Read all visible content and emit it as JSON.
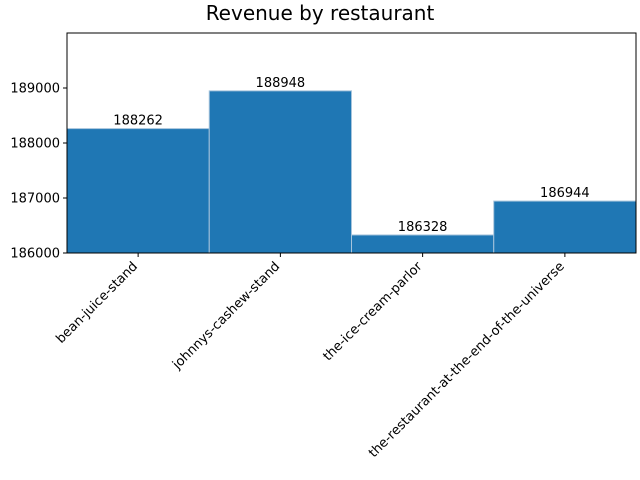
{
  "chart_data": {
    "type": "bar",
    "title": "Revenue by restaurant",
    "xlabel": "",
    "ylabel": "",
    "categories": [
      "bean-juice-stand",
      "johnnys-cashew-stand",
      "the-ice-cream-parlor",
      "the-restaurant-at-the-end-of-the-universe"
    ],
    "values": [
      188262,
      188948,
      186328,
      186944
    ],
    "data_labels": [
      "188262",
      "188948",
      "186328",
      "186944"
    ],
    "ylim": [
      186000,
      190000
    ],
    "yticks": [
      186000,
      187000,
      188000,
      189000
    ],
    "ytick_labels": [
      "186000",
      "187000",
      "188000",
      "189000"
    ],
    "grid": false,
    "bar_color": "#1f77b4",
    "bar_edge_color": "#a6c4dc"
  }
}
